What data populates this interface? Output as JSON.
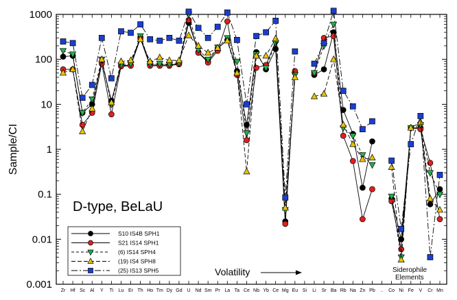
{
  "chart_data": {
    "type": "line",
    "ylabel": "Sample/CI",
    "xlabel": "",
    "yscale": "log",
    "ylim": [
      0.001,
      1000
    ],
    "y_ticks": [
      "0.001",
      "0.01",
      "0.1",
      "1",
      "10",
      "100",
      "1000"
    ],
    "annotation": "D-type, BeLaU",
    "volatility_label": "Volatility",
    "siderophile_label_1": "Siderophile",
    "siderophile_label_2": "Elements",
    "categories": [
      "Zr",
      "Hf",
      "Sc",
      "Al",
      "Y",
      "Ti",
      "Lu",
      "Er",
      "Th",
      "Ho",
      "Tm",
      "Dy",
      "Gd",
      "U",
      "Nd",
      "Sm",
      "Pr",
      "La",
      "Ta",
      "Ce",
      "Nb",
      "Yb",
      "Ce",
      "Mg",
      "Eu",
      "Si",
      "Li",
      "Sr",
      "Ba",
      "Rb",
      "Na",
      "Zn",
      "Pb",
      "..",
      "Co",
      "Ni",
      "Fe",
      "V",
      "Cr",
      "Mn"
    ],
    "series": [
      {
        "name": "S10 IS4B SPH1",
        "color": "#000000",
        "marker": "circle",
        "values": [
          115,
          120,
          6.5,
          10,
          90,
          12,
          72,
          75,
          310,
          75,
          75,
          75,
          80,
          650,
          145,
          90,
          175,
          270,
          55,
          3.5,
          145,
          60,
          170,
          0.025,
          50,
          null,
          45,
          60,
          400,
          7.5,
          2.2,
          0.14,
          1.5,
          null,
          0.08,
          0.01,
          3,
          3,
          0.06,
          0.13
        ]
      },
      {
        "name": "S21 IS14 SPH1",
        "color": "#e02020",
        "marker": "circle",
        "values": [
          60,
          60,
          3.5,
          6.5,
          80,
          6,
          70,
          72,
          290,
          72,
          72,
          72,
          78,
          750,
          140,
          85,
          155,
          700,
          45,
          1.6,
          65,
          75,
          250,
          0.022,
          55,
          null,
          50,
          300,
          330,
          2,
          0.55,
          0.028,
          0.13,
          null,
          0.07,
          0.006,
          3,
          2.8,
          0.5,
          0.028
        ]
      },
      {
        "name": "(6) IS14 SPH4",
        "color": "#22b14c",
        "marker": "triangle-down",
        "values": [
          155,
          130,
          6.5,
          13,
          100,
          10,
          75,
          80,
          330,
          80,
          80,
          78,
          82,
          1000,
          165,
          100,
          185,
          300,
          90,
          2.3,
          130,
          65,
          230,
          0.045,
          45,
          null,
          50,
          200,
          600,
          3,
          2,
          0.75,
          0.45,
          null,
          0.09,
          0.004,
          3,
          3.5,
          0.3,
          0.1
        ]
      },
      {
        "name": "(19) IS4 SPH8",
        "color": "#e8c400",
        "marker": "triangle-up",
        "values": [
          50,
          60,
          2.5,
          8,
          100,
          11,
          90,
          95,
          280,
          90,
          110,
          95,
          95,
          340,
          200,
          140,
          180,
          260,
          50,
          0.32,
          120,
          120,
          290,
          0.05,
          40,
          null,
          15,
          17,
          100,
          3.5,
          1.3,
          0.6,
          0.65,
          null,
          0.4,
          0.0035,
          3,
          4,
          0.08,
          0.045
        ]
      },
      {
        "name": "(25) IS13 SPH5",
        "color": "#1a3fd0",
        "marker": "square",
        "values": [
          250,
          230,
          14,
          27,
          300,
          38,
          420,
          390,
          600,
          280,
          260,
          300,
          260,
          1150,
          500,
          300,
          530,
          1100,
          270,
          10,
          330,
          400,
          720,
          0.085,
          150,
          null,
          80,
          230,
          1200,
          20,
          9,
          2.8,
          4.2,
          null,
          0.56,
          0.017,
          1.3,
          5.5,
          0.004,
          0.27
        ]
      }
    ],
    "legend_position": "bottom-left"
  }
}
